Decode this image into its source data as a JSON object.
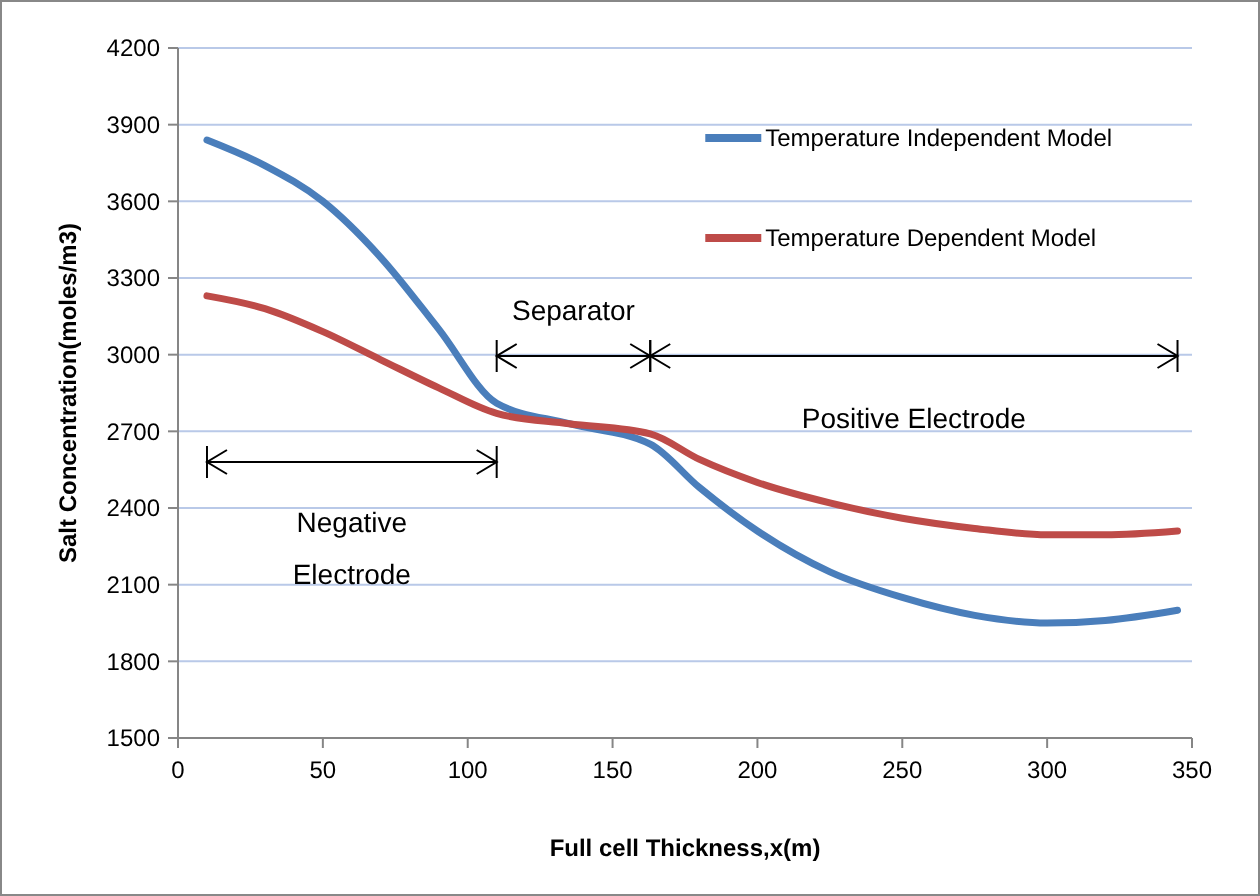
{
  "chart_data": {
    "type": "line",
    "xlabel": "Full cell Thickness,x(m)",
    "ylabel": "Salt Concentration(moles/m3)",
    "x": [
      10,
      30,
      50,
      70,
      90,
      110,
      135,
      163,
      180,
      200,
      225,
      250,
      275,
      300,
      320,
      345
    ],
    "series": [
      {
        "name": "Temperature Independent Model",
        "color": "#4a7ebb",
        "values": [
          3840,
          3740,
          3600,
          3380,
          3100,
          2810,
          2730,
          2650,
          2480,
          2310,
          2150,
          2050,
          1980,
          1950,
          1960,
          2000
        ]
      },
      {
        "name": "Temperature Dependent Model",
        "color": "#be4b48",
        "values": [
          3230,
          3180,
          3090,
          2980,
          2870,
          2770,
          2730,
          2690,
          2590,
          2500,
          2420,
          2360,
          2320,
          2295,
          2295,
          2310
        ]
      }
    ],
    "xlim": [
      0,
      350
    ],
    "xticks": [
      0,
      50,
      100,
      150,
      200,
      250,
      300,
      350
    ],
    "ylim": [
      1500,
      4200
    ],
    "yticks": [
      1500,
      1800,
      2100,
      2400,
      2700,
      3000,
      3300,
      3600,
      3900,
      4200
    ],
    "grid": "y",
    "legend": "top right",
    "marker": "none",
    "line_style": "solid",
    "annotations": [
      "Negative Electrode",
      "Separator",
      "Positive Electrode"
    ]
  }
}
